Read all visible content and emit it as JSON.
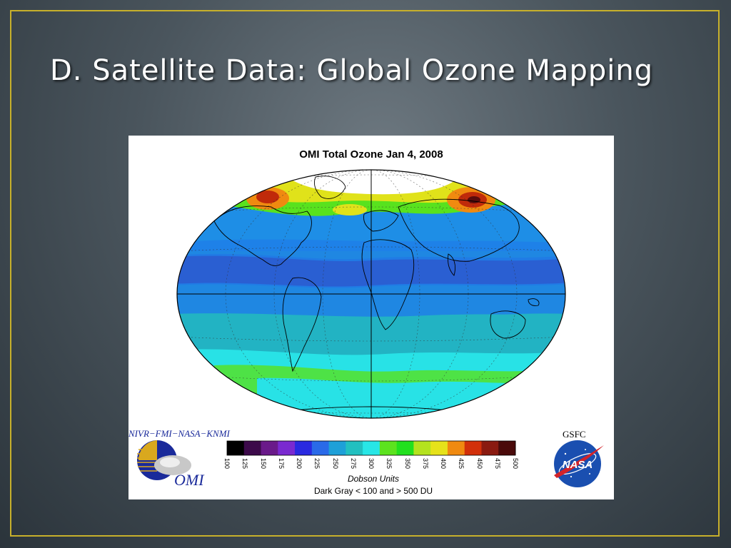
{
  "slide": {
    "title": "D. Satellite Data: Global Ozone Mapping"
  },
  "map": {
    "title": "OMI Total Ozone Jan  4, 2008",
    "projection": "Hammer-Aitoff (elliptical world map)",
    "colors": {
      "ocean_low": "#1e7fe8",
      "low_band": "#2a63d6",
      "mid": "#22b3c3",
      "cyan": "#28e2e6",
      "green": "#58e21e",
      "yellow": "#e0e21a",
      "orange": "#f08a10",
      "red": "#c02a0a",
      "darkred": "#5a0c0c",
      "nodata": "#ffffff"
    }
  },
  "colorbar": {
    "ticks": [
      "100",
      "125",
      "150",
      "175",
      "200",
      "225",
      "250",
      "275",
      "300",
      "325",
      "350",
      "375",
      "400",
      "425",
      "450",
      "475",
      "500"
    ],
    "colors": [
      "#000000",
      "#3c0a4a",
      "#6a1a8a",
      "#7a2ad0",
      "#2a2ae0",
      "#2a6ae8",
      "#1ea0d8",
      "#22c0c0",
      "#28e6e6",
      "#5ce21e",
      "#22e01e",
      "#b4e21e",
      "#e6e21a",
      "#f08a10",
      "#d2300a",
      "#8a1a10",
      "#4a0a0a"
    ],
    "units_label": "Dobson Units",
    "range_note": "Dark Gray < 100 and > 500 DU"
  },
  "logos": {
    "org_label": "NIVR−FMI−NASA−KNMI",
    "omi_text": "OMI",
    "gsfc_label": "GSFC",
    "nasa_text": "NASA"
  }
}
